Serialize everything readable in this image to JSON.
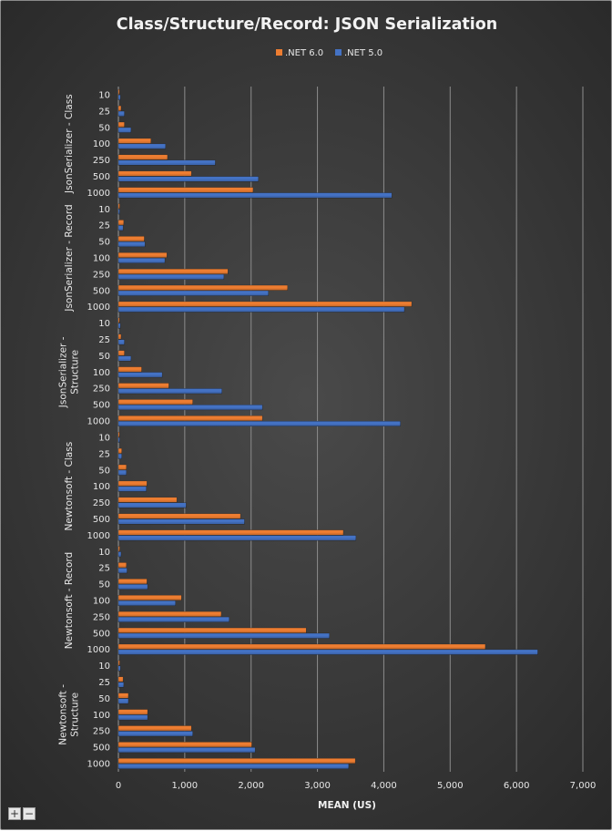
{
  "chart_data": {
    "type": "bar",
    "orientation": "horizontal",
    "title": "Class/Structure/Record: JSON Serialization",
    "xlabel": "MEAN (US)",
    "xlim": [
      0,
      7000
    ],
    "x_ticks": [
      "0",
      "1,000",
      "2,000",
      "3,000",
      "4,000",
      "5,000",
      "6,000",
      "7,000"
    ],
    "grid": true,
    "legend": "top",
    "subcategories": [
      "10",
      "25",
      "50",
      "100",
      "250",
      "500",
      "1000"
    ],
    "groups": [
      {
        "label": "JsonSerializer - Class",
        "label_lines": [
          "JsonSerializer - Class"
        ]
      },
      {
        "label": "JsonSerializer - Record",
        "label_lines": [
          "JsonSerializer - Record"
        ]
      },
      {
        "label": "JsonSerializer - Structure",
        "label_lines": [
          "JsonSerializer -",
          "Structure"
        ]
      },
      {
        "label": "Newtonsoft - Class",
        "label_lines": [
          "Newtonsoft - Class"
        ]
      },
      {
        "label": "Newtonsoft - Record",
        "label_lines": [
          "Newtonsoft - Record"
        ]
      },
      {
        "label": "Newtonsoft - Structure",
        "label_lines": [
          "Newtonsoft -",
          "Structure"
        ]
      }
    ],
    "series": [
      {
        "name": ".NET 6.0",
        "color": "#ED7D31",
        "values": [
          [
            10,
            40,
            90,
            490,
            740,
            1100,
            2030
          ],
          [
            20,
            80,
            390,
            730,
            1650,
            2550,
            4420
          ],
          [
            10,
            40,
            90,
            350,
            760,
            1120,
            2170
          ],
          [
            10,
            50,
            120,
            430,
            880,
            1840,
            3390
          ],
          [
            20,
            120,
            430,
            950,
            1550,
            2830,
            5530
          ],
          [
            20,
            70,
            150,
            440,
            1100,
            2010,
            3570
          ]
        ]
      },
      {
        "name": ".NET 5.0",
        "color": "#4472C4",
        "values": [
          [
            30,
            90,
            190,
            710,
            1460,
            2110,
            4120
          ],
          [
            20,
            70,
            400,
            700,
            1590,
            2260,
            4310
          ],
          [
            30,
            90,
            190,
            660,
            1560,
            2170,
            4250
          ],
          [
            20,
            50,
            120,
            420,
            1020,
            1900,
            3580
          ],
          [
            40,
            130,
            440,
            860,
            1670,
            3180,
            6320
          ],
          [
            30,
            80,
            150,
            440,
            1120,
            2060,
            3470
          ]
        ]
      }
    ]
  },
  "zoom_controls": {
    "plus": "+",
    "minus": "−"
  }
}
